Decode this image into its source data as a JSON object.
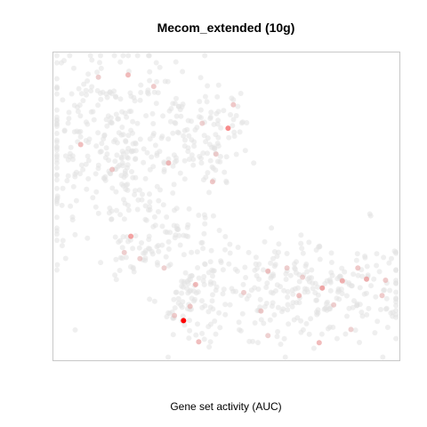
{
  "chart_data": {
    "type": "scatter",
    "title": "Mecom_extended (10g)",
    "xlabel": "Gene set activity (AUC)",
    "ylabel": "",
    "axes_visible": false,
    "grid": false,
    "legend": "none",
    "xlim": [
      0,
      1
    ],
    "ylim": [
      0,
      1
    ],
    "colors": {
      "low": "#e2e2e2",
      "high": "#ff0000",
      "frame": "#c8c8c8"
    },
    "n_background_points": 900,
    "highlighted_points": [
      {
        "x": 0.376,
        "y": 0.129,
        "auc": 1.0
      },
      {
        "x": 0.505,
        "y": 0.754,
        "auc": 0.6
      },
      {
        "x": 0.224,
        "y": 0.403,
        "auc": 0.45
      },
      {
        "x": 0.777,
        "y": 0.235,
        "auc": 0.4
      },
      {
        "x": 0.835,
        "y": 0.258,
        "auc": 0.35
      },
      {
        "x": 0.905,
        "y": 0.264,
        "auc": 0.35
      },
      {
        "x": 0.768,
        "y": 0.057,
        "auc": 0.3
      },
      {
        "x": 0.411,
        "y": 0.246,
        "auc": 0.3
      },
      {
        "x": 0.216,
        "y": 0.927,
        "auc": 0.3
      },
      {
        "x": 0.333,
        "y": 0.641,
        "auc": 0.3
      },
      {
        "x": 0.079,
        "y": 0.701,
        "auc": 0.28
      },
      {
        "x": 0.42,
        "y": 0.06,
        "auc": 0.28
      },
      {
        "x": 0.62,
        "y": 0.29,
        "auc": 0.25
      },
      {
        "x": 0.71,
        "y": 0.21,
        "auc": 0.25
      },
      {
        "x": 0.17,
        "y": 0.62,
        "auc": 0.22
      },
      {
        "x": 0.46,
        "y": 0.58,
        "auc": 0.22
      },
      {
        "x": 0.52,
        "y": 0.83,
        "auc": 0.22
      },
      {
        "x": 0.29,
        "y": 0.89,
        "auc": 0.2
      },
      {
        "x": 0.395,
        "y": 0.175,
        "auc": 0.22
      },
      {
        "x": 0.35,
        "y": 0.145,
        "auc": 0.2
      },
      {
        "x": 0.6,
        "y": 0.16,
        "auc": 0.2
      },
      {
        "x": 0.88,
        "y": 0.3,
        "auc": 0.22
      },
      {
        "x": 0.95,
        "y": 0.21,
        "auc": 0.2
      },
      {
        "x": 0.96,
        "y": 0.26,
        "auc": 0.2
      },
      {
        "x": 0.675,
        "y": 0.3,
        "auc": 0.18
      },
      {
        "x": 0.205,
        "y": 0.35,
        "auc": 0.18
      },
      {
        "x": 0.13,
        "y": 0.92,
        "auc": 0.18
      },
      {
        "x": 0.47,
        "y": 0.67,
        "auc": 0.18
      },
      {
        "x": 0.81,
        "y": 0.18,
        "auc": 0.18
      },
      {
        "x": 0.55,
        "y": 0.22,
        "auc": 0.18
      },
      {
        "x": 0.43,
        "y": 0.77,
        "auc": 0.16
      },
      {
        "x": 0.32,
        "y": 0.3,
        "auc": 0.16
      },
      {
        "x": 0.25,
        "y": 0.33,
        "auc": 0.16
      },
      {
        "x": 0.62,
        "y": 0.08,
        "auc": 0.16
      },
      {
        "x": 0.72,
        "y": 0.27,
        "auc": 0.16
      },
      {
        "x": 0.86,
        "y": 0.1,
        "auc": 0.16
      }
    ]
  }
}
